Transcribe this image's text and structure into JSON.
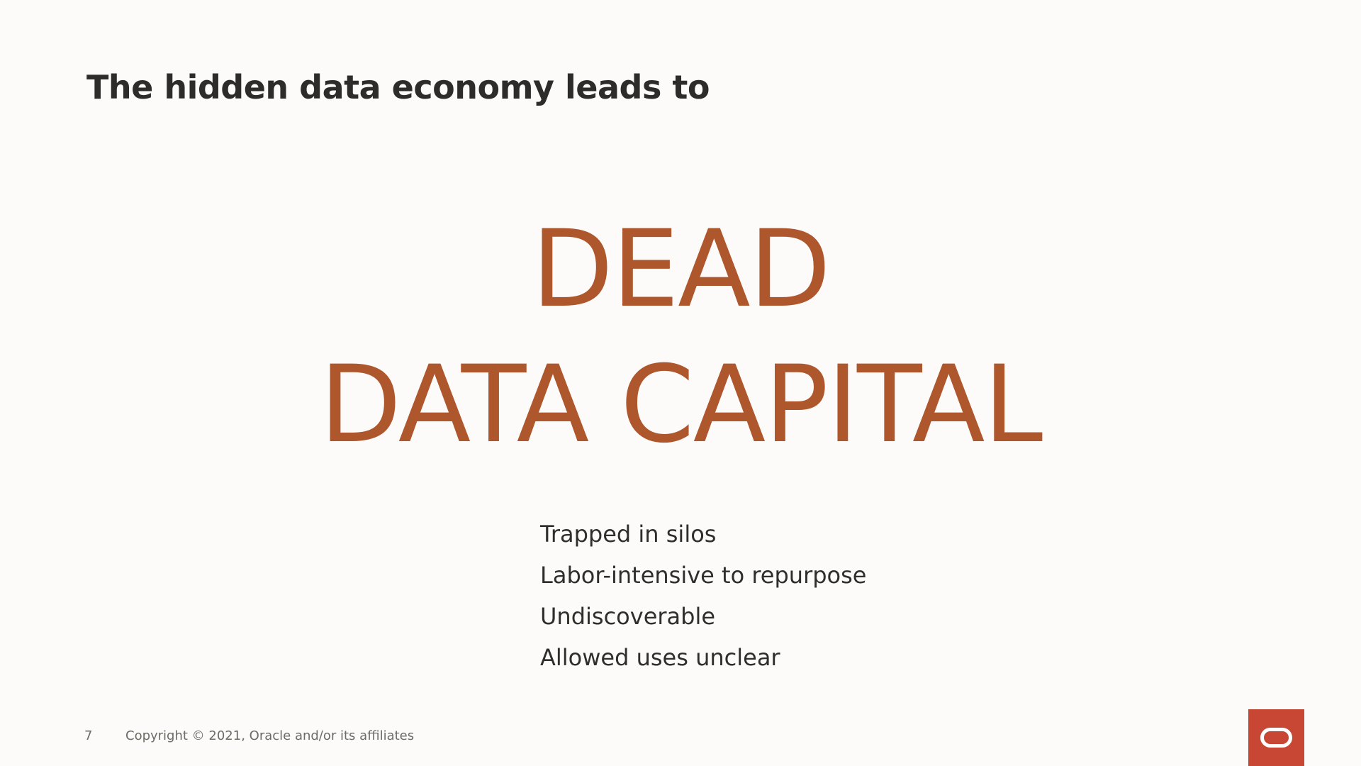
{
  "slide": {
    "title": "The hidden data economy leads to",
    "headline_line1": "DEAD",
    "headline_line2": "DATA CAPITAL",
    "bullets": [
      "Trapped in silos",
      "Labor-intensive to repurpose",
      "Undiscoverable",
      "Allowed uses unclear"
    ]
  },
  "footer": {
    "page_number": "7",
    "copyright": "Copyright © 2021, Oracle and/or its affiliates"
  },
  "logo": {
    "icon": "oracle-logo-icon",
    "color": "#c74634"
  },
  "colors": {
    "accent": "#ae562c",
    "text": "#312d2a",
    "background": "#fcfbfa"
  }
}
